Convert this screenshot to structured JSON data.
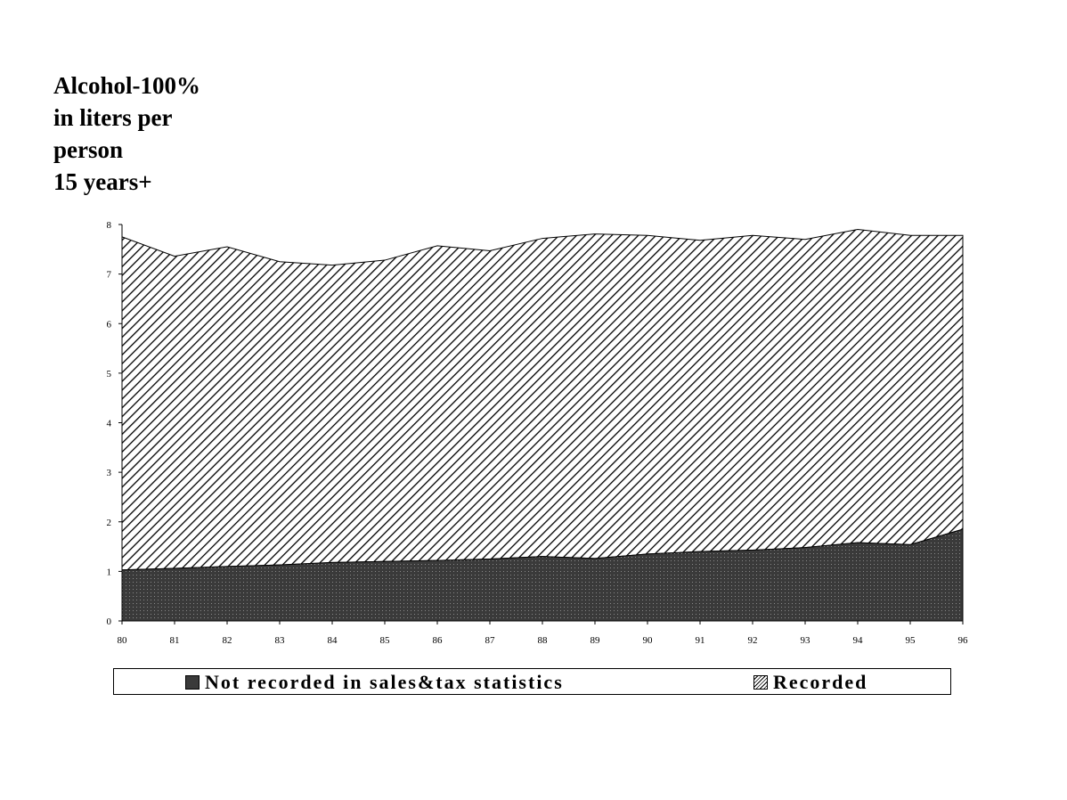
{
  "chart_data": {
    "type": "area",
    "stacked": true,
    "title": "",
    "ylabel_lines": [
      "Alcohol-100%",
      "in liters per",
      "person",
      "15 years+"
    ],
    "xlabel": "",
    "x": [
      "80",
      "81",
      "82",
      "83",
      "84",
      "85",
      "86",
      "87",
      "88",
      "89",
      "90",
      "91",
      "92",
      "93",
      "94",
      "95",
      "96"
    ],
    "ylim": [
      0,
      8
    ],
    "yticks": [
      "0",
      "1",
      "2",
      "3",
      "4",
      "5",
      "6",
      "7",
      "8"
    ],
    "series": [
      {
        "name": "Not recorded in sales&tax statistics",
        "pattern": "dark-dotted",
        "color": "#3c3c3c",
        "values": [
          1.03,
          1.06,
          1.1,
          1.13,
          1.18,
          1.2,
          1.22,
          1.25,
          1.3,
          1.26,
          1.35,
          1.4,
          1.43,
          1.48,
          1.58,
          1.54,
          1.85
        ]
      },
      {
        "name": "Recorded",
        "pattern": "diagonal-hatch",
        "color": "#000000",
        "values": [
          6.72,
          6.3,
          6.45,
          6.12,
          6.0,
          6.08,
          6.35,
          6.22,
          6.42,
          6.55,
          6.43,
          6.28,
          6.35,
          6.22,
          6.32,
          6.24,
          5.93
        ]
      }
    ],
    "grid": false,
    "legend_position": "bottom"
  }
}
